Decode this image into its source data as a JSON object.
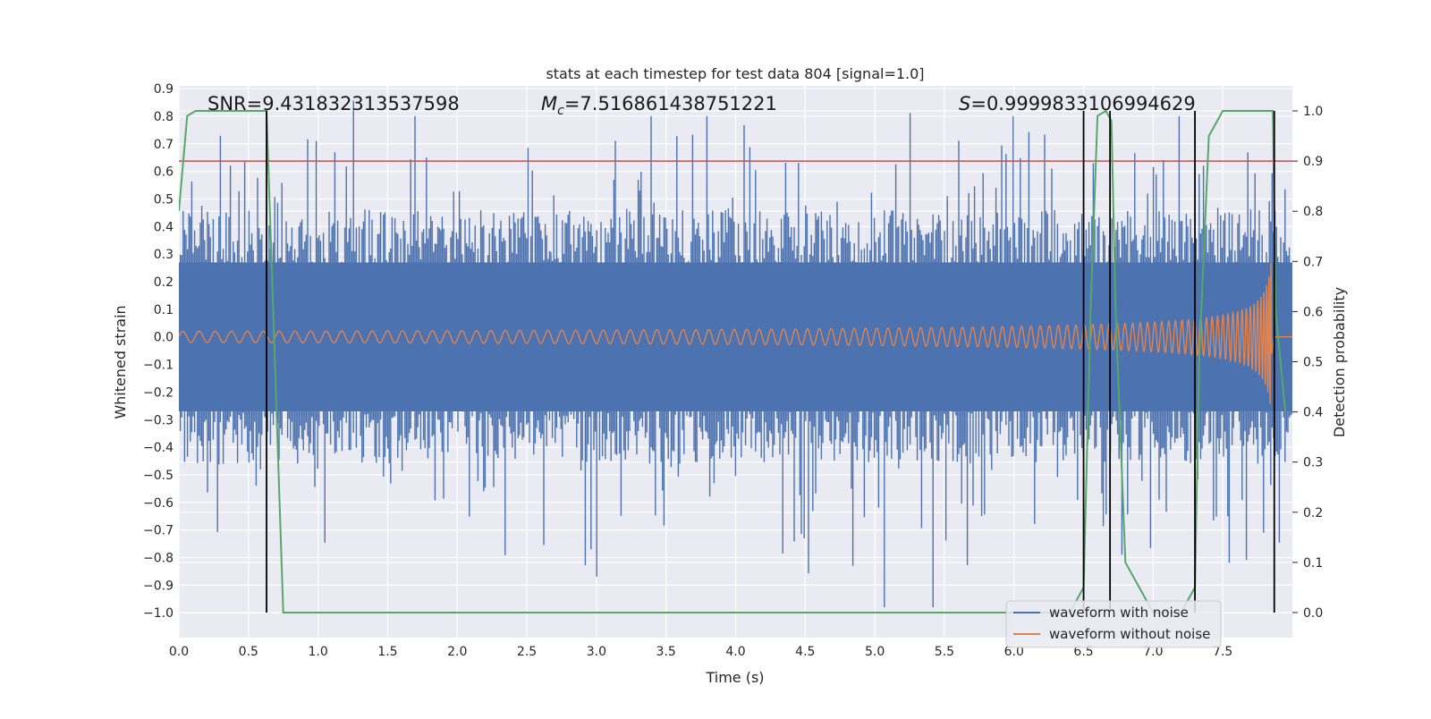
{
  "chart_data": {
    "type": "line",
    "title": "stats at each timestep for test data 804 [signal=1.0]",
    "xlabel": "Time (s)",
    "ylabel": "Whitened strain",
    "y2label": "Detection probability",
    "xlim": [
      0.0,
      8.0
    ],
    "ylim": [
      -1.09,
      0.91
    ],
    "y2lim": [
      -0.05,
      1.05
    ],
    "grid": true,
    "x_ticks": [
      "0.0",
      "0.5",
      "1.0",
      "1.5",
      "2.0",
      "2.5",
      "3.0",
      "3.5",
      "4.0",
      "4.5",
      "5.0",
      "5.5",
      "6.0",
      "6.5",
      "7.0",
      "7.5"
    ],
    "y_ticks": [
      "0.9",
      "0.8",
      "0.7",
      "0.6",
      "0.5",
      "0.4",
      "0.3",
      "0.2",
      "0.1",
      "0.0",
      "−0.1",
      "−0.2",
      "−0.3",
      "−0.4",
      "−0.5",
      "−0.6",
      "−0.7",
      "−0.8",
      "−0.9",
      "−1.0"
    ],
    "y2_ticks": [
      "1.0",
      "0.9",
      "0.8",
      "0.7",
      "0.6",
      "0.5",
      "0.4",
      "0.3",
      "0.2",
      "0.1",
      "0.0"
    ],
    "annotations": {
      "snr": "SNR=9.431832313537598",
      "mc_symbol": "M",
      "mc_sub": "c",
      "mc_value": "=7.516861438751221",
      "s_symbol": "S",
      "s_value": "=0.9999833106994629"
    },
    "legend": {
      "position": "lower-right",
      "entries": [
        "waveform with noise",
        "waveform without noise"
      ]
    },
    "series": [
      {
        "name": "waveform with noise",
        "color": "#4c72b0",
        "description": "noisy whitened strain, roughly ±0.4 with spikes to ±0.8"
      },
      {
        "name": "waveform without noise",
        "color": "#dd8452",
        "description": "chirp from t=0 to t=7.85 s, amplitude growing from ~0.02 to ~0.3"
      },
      {
        "name": "detection probability",
        "color": "#55a868",
        "axis": "y2",
        "x": [
          0.0,
          0.06,
          0.12,
          0.3,
          0.5,
          0.63,
          0.75,
          1.0,
          2.0,
          3.0,
          4.0,
          5.0,
          5.5,
          5.6,
          6.0,
          6.4,
          6.5,
          6.55,
          6.6,
          6.66,
          6.7,
          6.73,
          6.8,
          6.9,
          7.0,
          7.2,
          7.3,
          7.33,
          7.4,
          7.5,
          7.7,
          7.86,
          7.88,
          7.95
        ],
        "y": [
          0.8,
          0.99,
          1.0,
          1.0,
          1.0,
          1.0,
          0.0,
          0.0,
          0.0,
          0.0,
          0.0,
          0.0,
          0.0,
          0.0,
          0.0,
          0.0,
          0.05,
          0.6,
          0.99,
          1.0,
          0.98,
          0.6,
          0.1,
          0.05,
          0.0,
          0.0,
          0.05,
          0.5,
          0.95,
          1.0,
          1.0,
          1.0,
          0.6,
          0.4
        ]
      }
    ],
    "threshold": {
      "axis": "y2",
      "value": 0.9,
      "color": "#c44e52"
    },
    "event_lines": {
      "x": [
        0.63,
        6.5,
        6.69,
        7.3,
        7.87
      ],
      "color": "#000000"
    },
    "chirp": {
      "start": 0.0,
      "end": 7.85,
      "amp_start": 0.02,
      "amp_end": 0.3
    }
  }
}
